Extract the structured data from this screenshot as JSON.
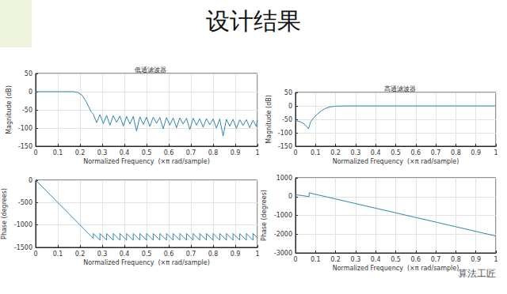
{
  "title": "设计结果",
  "watermark": "算法工匠",
  "chart_data": [
    {
      "type": "line",
      "title": "低通滤波器",
      "xlabel": "Normalized Frequency  (×π rad/sample)",
      "ylabel": "Magnitude (dB)",
      "color": "#2f86b0",
      "grid": true,
      "xlim": [
        0,
        1
      ],
      "xticks": [
        0,
        0.1,
        0.2,
        0.3,
        0.4,
        0.5,
        0.6,
        0.7,
        0.8,
        0.9,
        1
      ],
      "ylim": [
        -150,
        50
      ],
      "yticks": [
        -150,
        -100,
        -50,
        0,
        50
      ],
      "x": [
        0,
        0.05,
        0.1,
        0.15,
        0.17,
        0.19,
        0.21,
        0.23,
        0.25,
        0.26,
        0.275,
        0.29,
        0.305,
        0.32,
        0.335,
        0.35,
        0.365,
        0.38,
        0.395,
        0.41,
        0.425,
        0.44,
        0.455,
        0.47,
        0.485,
        0.5,
        0.515,
        0.53,
        0.545,
        0.56,
        0.575,
        0.59,
        0.605,
        0.62,
        0.635,
        0.65,
        0.665,
        0.68,
        0.695,
        0.71,
        0.725,
        0.74,
        0.755,
        0.77,
        0.785,
        0.8,
        0.815,
        0.83,
        0.845,
        0.86,
        0.875,
        0.89,
        0.905,
        0.92,
        0.935,
        0.95,
        0.965,
        0.98,
        0.995,
        1
      ],
      "values": [
        0,
        0,
        0,
        0,
        0,
        -2,
        -10,
        -30,
        -55,
        -62,
        -85,
        -63,
        -88,
        -65,
        -92,
        -66,
        -84,
        -67,
        -95,
        -68,
        -89,
        -68,
        -108,
        -69,
        -90,
        -70,
        -96,
        -70,
        -87,
        -71,
        -102,
        -71,
        -92,
        -72,
        -99,
        -72,
        -89,
        -73,
        -104,
        -73,
        -92,
        -74,
        -98,
        -74,
        -91,
        -75,
        -100,
        -75,
        -122,
        -76,
        -95,
        -76,
        -101,
        -77,
        -93,
        -77,
        -99,
        -78,
        -96,
        -78
      ]
    },
    {
      "type": "line",
      "xlabel": "Normalized Frequency  (×π rad/sample)",
      "ylabel": "Phase (degrees)",
      "color": "#2f86b0",
      "grid": true,
      "xlim": [
        0,
        1
      ],
      "xticks": [
        0,
        0.1,
        0.2,
        0.3,
        0.4,
        0.5,
        0.6,
        0.7,
        0.8,
        0.9,
        1
      ],
      "ylim": [
        -1500,
        0
      ],
      "yticks": [
        -1500,
        -1000,
        -500,
        0
      ],
      "x": [
        0,
        0.05,
        0.1,
        0.15,
        0.2,
        0.25,
        0.26,
        0.26,
        0.29,
        0.29,
        0.32,
        0.32,
        0.35,
        0.35,
        0.38,
        0.38,
        0.41,
        0.41,
        0.44,
        0.44,
        0.47,
        0.47,
        0.5,
        0.5,
        0.53,
        0.53,
        0.56,
        0.56,
        0.59,
        0.59,
        0.62,
        0.62,
        0.65,
        0.65,
        0.68,
        0.68,
        0.71,
        0.71,
        0.74,
        0.74,
        0.77,
        0.77,
        0.8,
        0.8,
        0.83,
        0.83,
        0.86,
        0.86,
        0.89,
        0.89,
        0.92,
        0.92,
        0.95,
        0.95,
        0.98,
        0.98,
        1
      ],
      "values": [
        0,
        -250,
        -500,
        -750,
        -1000,
        -1250,
        -1300,
        -1190,
        -1340,
        -1190,
        -1340,
        -1190,
        -1340,
        -1190,
        -1340,
        -1190,
        -1340,
        -1190,
        -1340,
        -1190,
        -1340,
        -1190,
        -1340,
        -1190,
        -1340,
        -1190,
        -1340,
        -1190,
        -1340,
        -1190,
        -1340,
        -1190,
        -1340,
        -1190,
        -1340,
        -1190,
        -1340,
        -1190,
        -1340,
        -1190,
        -1340,
        -1190,
        -1340,
        -1190,
        -1340,
        -1190,
        -1340,
        -1190,
        -1340,
        -1190,
        -1340,
        -1190,
        -1340,
        -1190,
        -1340,
        -1190,
        -1290
      ]
    },
    {
      "type": "line",
      "title": "高通滤波器",
      "xlabel": "Normalized Frequency  (×π rad/sample)",
      "ylabel": "Magnitude (dB)",
      "color": "#2f86b0",
      "grid": true,
      "xlim": [
        0,
        1
      ],
      "xticks": [
        0,
        0.1,
        0.2,
        0.3,
        0.4,
        0.5,
        0.6,
        0.7,
        0.8,
        0.9,
        1
      ],
      "ylim": [
        -150,
        50
      ],
      "yticks": [
        -150,
        -100,
        -50,
        0,
        50
      ],
      "x": [
        0,
        0.02,
        0.04,
        0.055,
        0.065,
        0.075,
        0.09,
        0.11,
        0.13,
        0.15,
        0.17,
        0.2,
        0.25,
        0.3,
        0.4,
        0.5,
        0.6,
        0.7,
        0.8,
        0.9,
        1
      ],
      "values": [
        -55,
        -58,
        -65,
        -75,
        -85,
        -60,
        -45,
        -30,
        -18,
        -9,
        -4,
        -1,
        0,
        0,
        0,
        0,
        0,
        0,
        0,
        0,
        0
      ]
    },
    {
      "type": "line",
      "xlabel": "Normalized Frequency  (×π rad/sample)",
      "ylabel": "Phase (degrees)",
      "color": "#2f86b0",
      "grid": true,
      "xlim": [
        0,
        1
      ],
      "xticks": [
        0,
        0.1,
        0.2,
        0.3,
        0.4,
        0.5,
        0.6,
        0.7,
        0.8,
        0.9,
        1
      ],
      "ylim": [
        -3000,
        1000
      ],
      "yticks": [
        -3000,
        -2000,
        -1000,
        0,
        1000
      ],
      "x": [
        0,
        0.035,
        0.068,
        0.068,
        0.2,
        0.4,
        0.6,
        0.8,
        1
      ],
      "values": [
        100,
        50,
        0,
        200,
        -126,
        -619,
        -1113,
        -1606,
        -2100
      ]
    }
  ]
}
